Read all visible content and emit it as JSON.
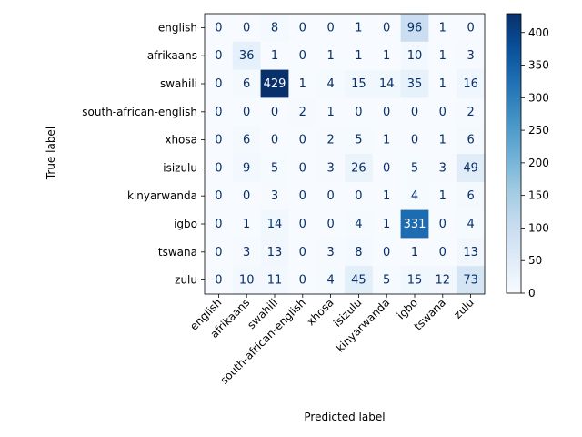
{
  "chart_data": {
    "type": "heatmap",
    "title": "",
    "xlabel": "Predicted label",
    "ylabel": "True label",
    "labels": [
      "english",
      "afrikaans",
      "swahili",
      "south-african-english",
      "xhosa",
      "isizulu",
      "kinyarwanda",
      "igbo",
      "tswana",
      "zulu"
    ],
    "matrix": [
      [
        0,
        0,
        8,
        0,
        0,
        1,
        0,
        96,
        1,
        0
      ],
      [
        0,
        36,
        1,
        0,
        1,
        1,
        1,
        10,
        1,
        3
      ],
      [
        0,
        6,
        429,
        1,
        4,
        15,
        14,
        35,
        1,
        16
      ],
      [
        0,
        0,
        0,
        2,
        1,
        0,
        0,
        0,
        0,
        2
      ],
      [
        0,
        6,
        0,
        0,
        2,
        5,
        1,
        0,
        1,
        6
      ],
      [
        0,
        9,
        5,
        0,
        3,
        26,
        0,
        5,
        3,
        49
      ],
      [
        0,
        0,
        3,
        0,
        0,
        0,
        1,
        4,
        1,
        6
      ],
      [
        0,
        1,
        14,
        0,
        0,
        4,
        1,
        331,
        0,
        4
      ],
      [
        0,
        3,
        13,
        0,
        3,
        8,
        0,
        1,
        0,
        13
      ],
      [
        0,
        10,
        11,
        0,
        4,
        45,
        5,
        15,
        12,
        73
      ]
    ],
    "colormap": "Blues",
    "vmin": 0,
    "vmax": 429,
    "colorbar_ticks": [
      0,
      50,
      100,
      150,
      200,
      250,
      300,
      350,
      400
    ]
  }
}
